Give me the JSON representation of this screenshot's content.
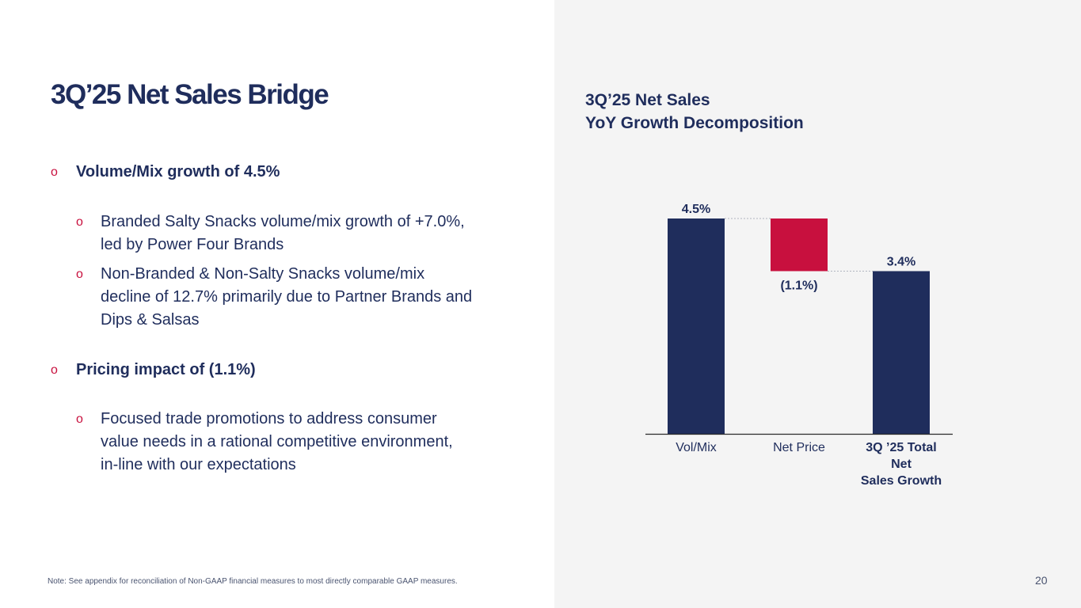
{
  "slide": {
    "title": "3Q’25 Net Sales Bridge",
    "footnote": "Note: See appendix for reconciliation of Non-GAAP financial measures to most directly comparable GAAP measures.",
    "page_number": "20"
  },
  "bullets": [
    {
      "level": 1,
      "marker": "o",
      "text": "Volume/Mix growth of 4.5%"
    },
    {
      "level": 2,
      "marker": "o",
      "text": "Branded Salty Snacks volume/mix growth of +7.0%,\nled by Power Four Brands"
    },
    {
      "level": 2,
      "marker": "o",
      "text": "Non-Branded & Non-Salty Snacks volume/mix\ndecline of 12.7% primarily due to Partner Brands and\nDips & Salsas"
    },
    {
      "level": 1,
      "marker": "o",
      "text": "Pricing impact of (1.1%)"
    },
    {
      "level": 2,
      "marker": "o",
      "text": "Focused trade promotions to address consumer\nvalue needs in a rational competitive environment,\nin-line with our expectations"
    }
  ],
  "chart_title": {
    "line1": "3Q’25 Net Sales",
    "line2": "YoY Growth Decomposition"
  },
  "colors": {
    "navy": "#1f2d5c",
    "red": "#c8103e",
    "panel": "#f4f4f4"
  },
  "chart_data": {
    "type": "bar",
    "subtype": "waterfall",
    "title": "3Q’25 Net Sales YoY Growth Decomposition",
    "categories": [
      "Vol/Mix",
      "Net Price",
      "3Q ’25 Total Net Sales Growth"
    ],
    "category_label_lines": [
      [
        "Vol/Mix"
      ],
      [
        "Net Price"
      ],
      [
        "3Q ’25 Total",
        "Net",
        "Sales Growth"
      ]
    ],
    "category_label_bold": [
      false,
      false,
      true
    ],
    "values": [
      4.5,
      -1.1,
      3.4
    ],
    "kinds": [
      "increase",
      "decrease",
      "total"
    ],
    "data_labels": [
      "4.5%",
      "(1.1%)",
      "3.4%"
    ],
    "units": "%",
    "ylim": [
      0,
      4.5
    ],
    "grid": false,
    "legend": "none"
  }
}
